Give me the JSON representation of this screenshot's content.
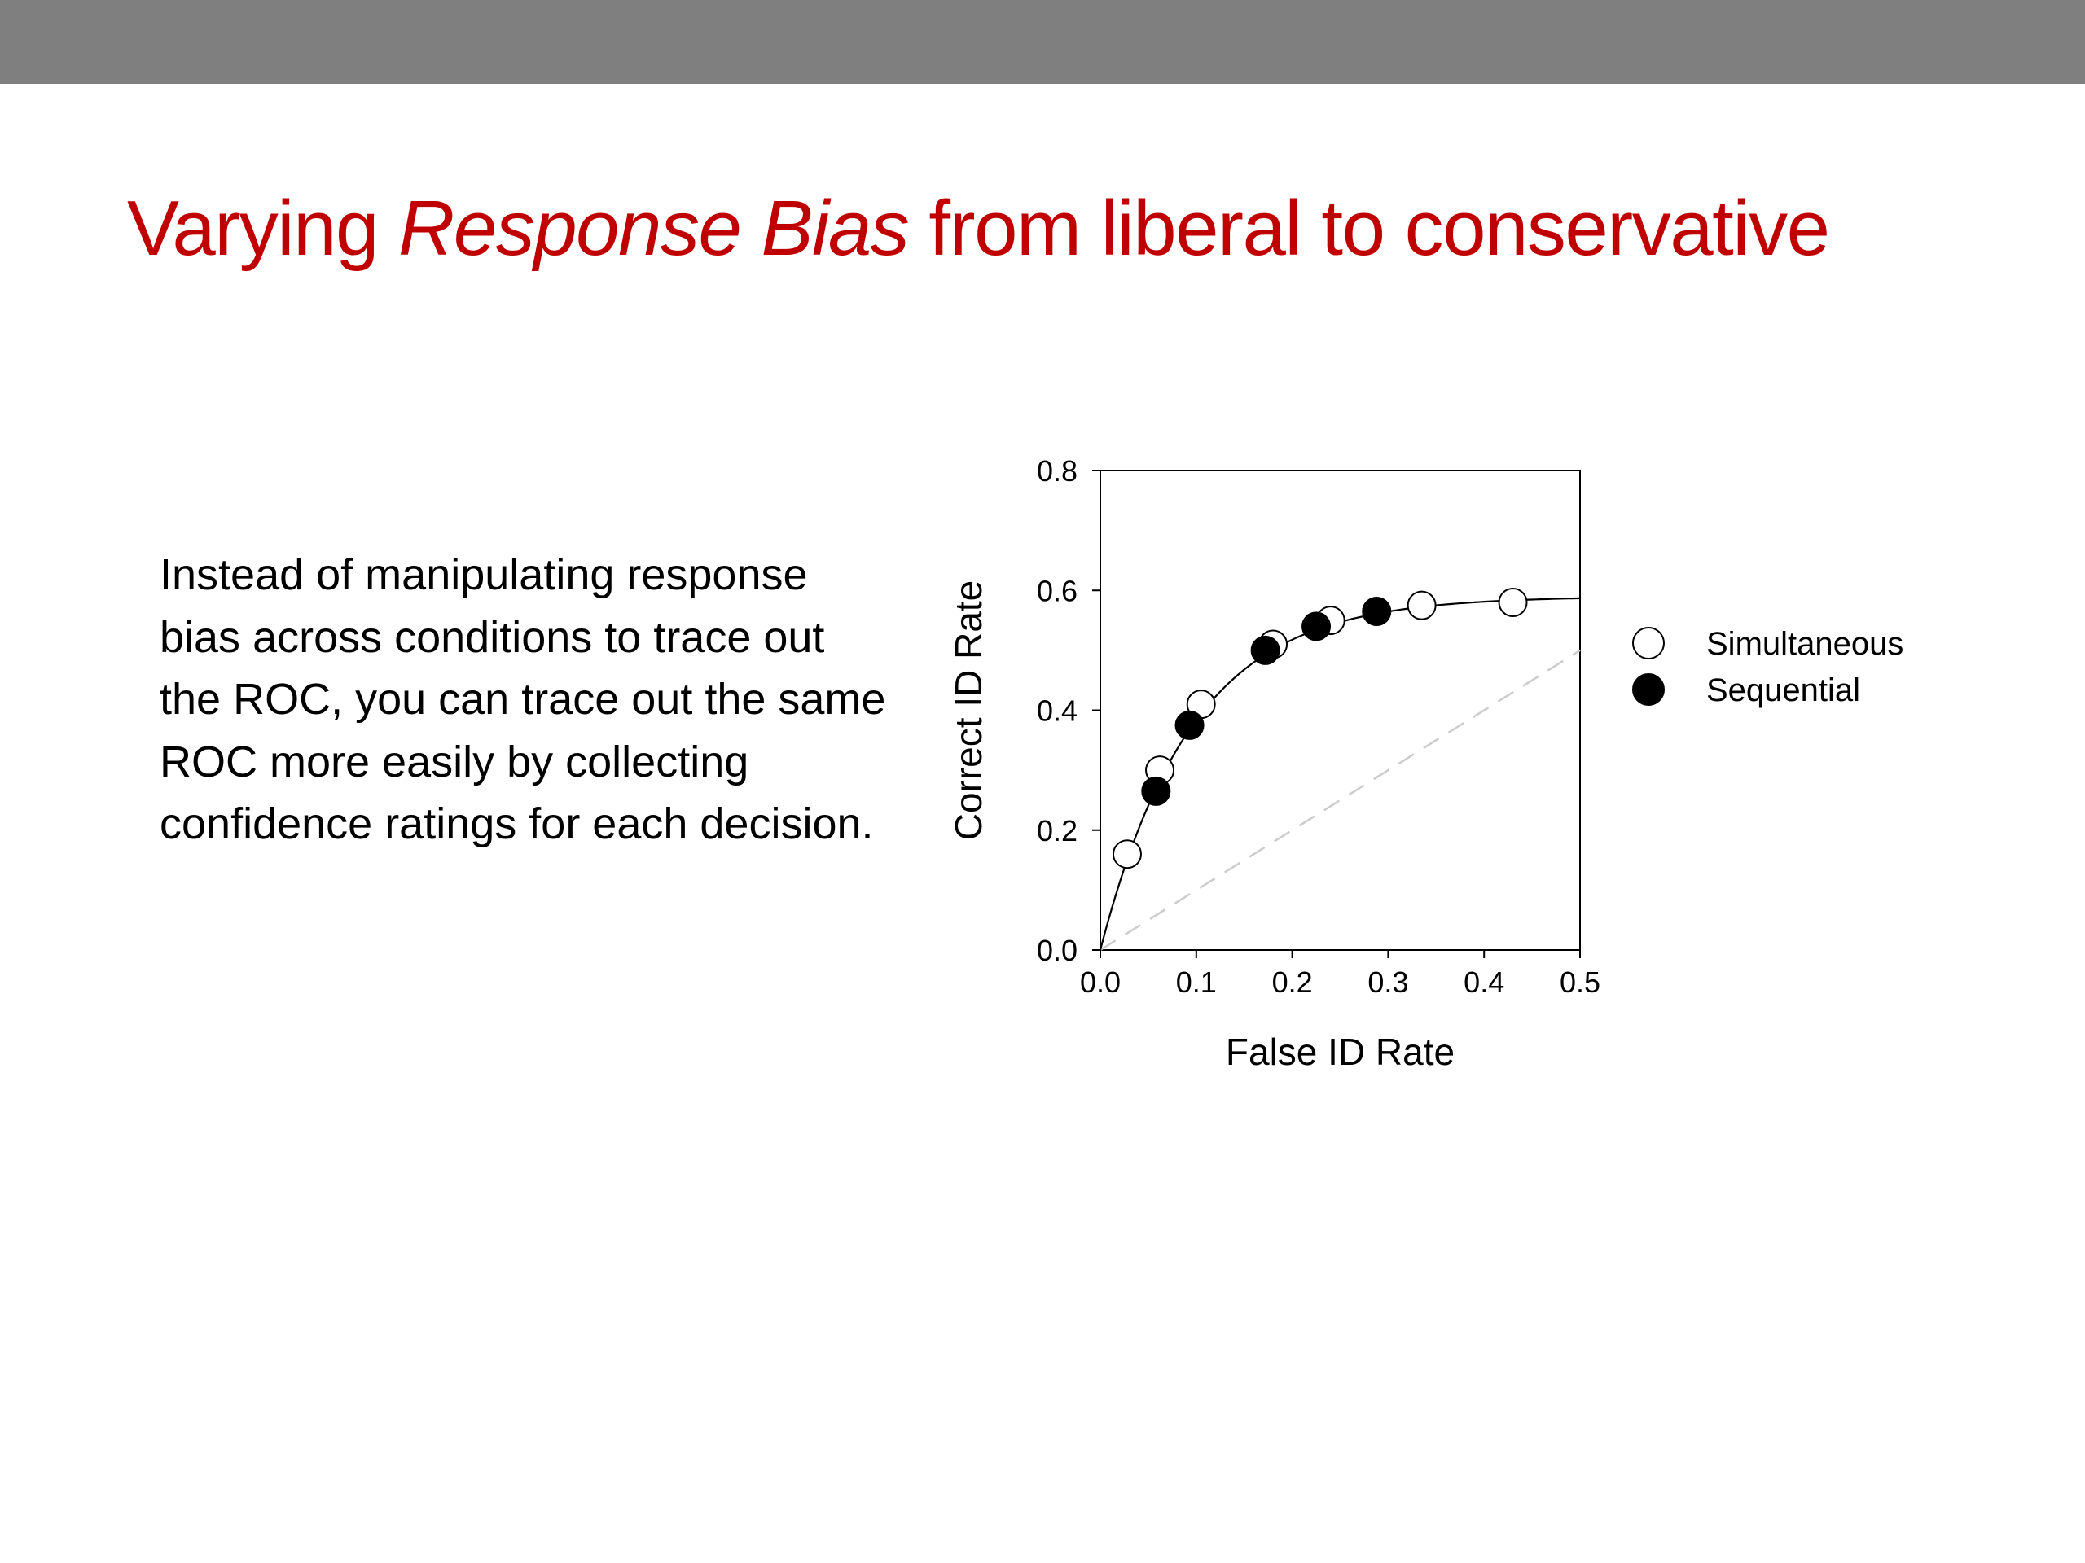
{
  "slide": {
    "title_parts": {
      "before": "Varying ",
      "emphasis": "Response Bias",
      "after": " from liberal to conservative"
    },
    "body": "Instead of manipulating response bias across conditions to trace out the ROC, you can trace out the same ROC more easily by collecting confidence ratings for each decision.",
    "colors": {
      "title": "#c00000",
      "top_bar": "#7f7f7f",
      "chance_line": "#cccccc"
    }
  },
  "chart_data": {
    "type": "scatter",
    "xlabel": "False ID Rate",
    "ylabel": "Correct ID Rate",
    "xlim": [
      0,
      0.5
    ],
    "ylim": [
      0,
      0.8
    ],
    "xticks": [
      "0.0",
      "0.1",
      "0.2",
      "0.3",
      "0.4",
      "0.5"
    ],
    "yticks": [
      "0.0",
      "0.2",
      "0.4",
      "0.6",
      "0.8"
    ],
    "grid": false,
    "legend_position": "right",
    "series": [
      {
        "name": "Simultaneous",
        "marker": "open-circle",
        "points": [
          {
            "x": 0.028,
            "y": 0.16
          },
          {
            "x": 0.062,
            "y": 0.3
          },
          {
            "x": 0.105,
            "y": 0.41
          },
          {
            "x": 0.18,
            "y": 0.51
          },
          {
            "x": 0.24,
            "y": 0.55
          },
          {
            "x": 0.335,
            "y": 0.575
          },
          {
            "x": 0.43,
            "y": 0.58
          }
        ]
      },
      {
        "name": "Sequential",
        "marker": "filled-circle",
        "points": [
          {
            "x": 0.058,
            "y": 0.265
          },
          {
            "x": 0.093,
            "y": 0.375
          },
          {
            "x": 0.172,
            "y": 0.5
          },
          {
            "x": 0.225,
            "y": 0.54
          },
          {
            "x": 0.288,
            "y": 0.565
          }
        ]
      }
    ],
    "fit_curve": {
      "asymptote": 0.59,
      "rate": 10.5
    },
    "chance_line": {
      "from": [
        0,
        0
      ],
      "to": [
        0.5,
        0.5
      ],
      "style": "dashed"
    }
  }
}
